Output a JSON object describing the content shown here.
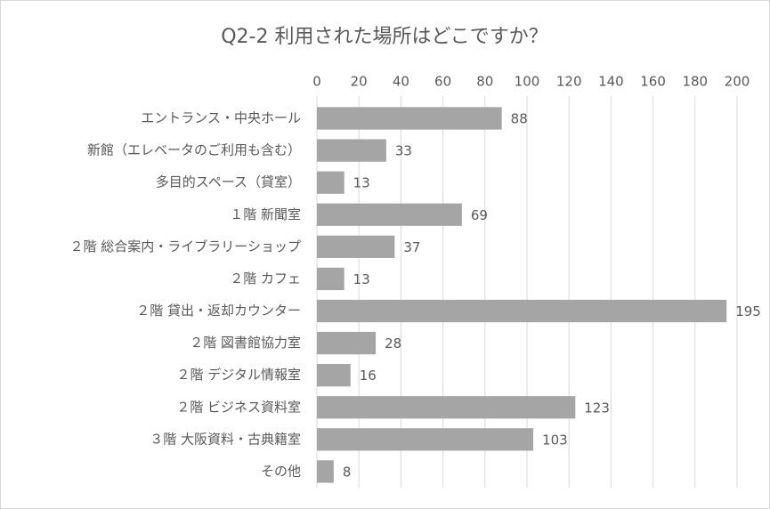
{
  "chart_data": {
    "type": "bar",
    "title": "Q2-2 利用された場所はどこですか？",
    "categories": [
      "エントランス・中央ホール",
      "新館（エレベータのご利用も含む）",
      "多目的スペース（貸室）",
      "１階 新聞室",
      "２階 総合案内・ライブラリーショップ",
      "２階 カフェ",
      "２階 貸出・返却カウンター",
      "２階 図書館協力室",
      "２階 デジタル情報室",
      "２階 ビジネス資料室",
      "３階 大阪資料・古典籍室",
      "その他"
    ],
    "values": [
      88,
      33,
      13,
      69,
      37,
      13,
      195,
      28,
      16,
      123,
      103,
      8
    ],
    "color": "#a5a5a5",
    "xlim": [
      0,
      200
    ],
    "xticks": [
      0,
      20,
      40,
      60,
      80,
      100,
      120,
      140,
      160,
      180,
      200
    ],
    "grid": true
  }
}
